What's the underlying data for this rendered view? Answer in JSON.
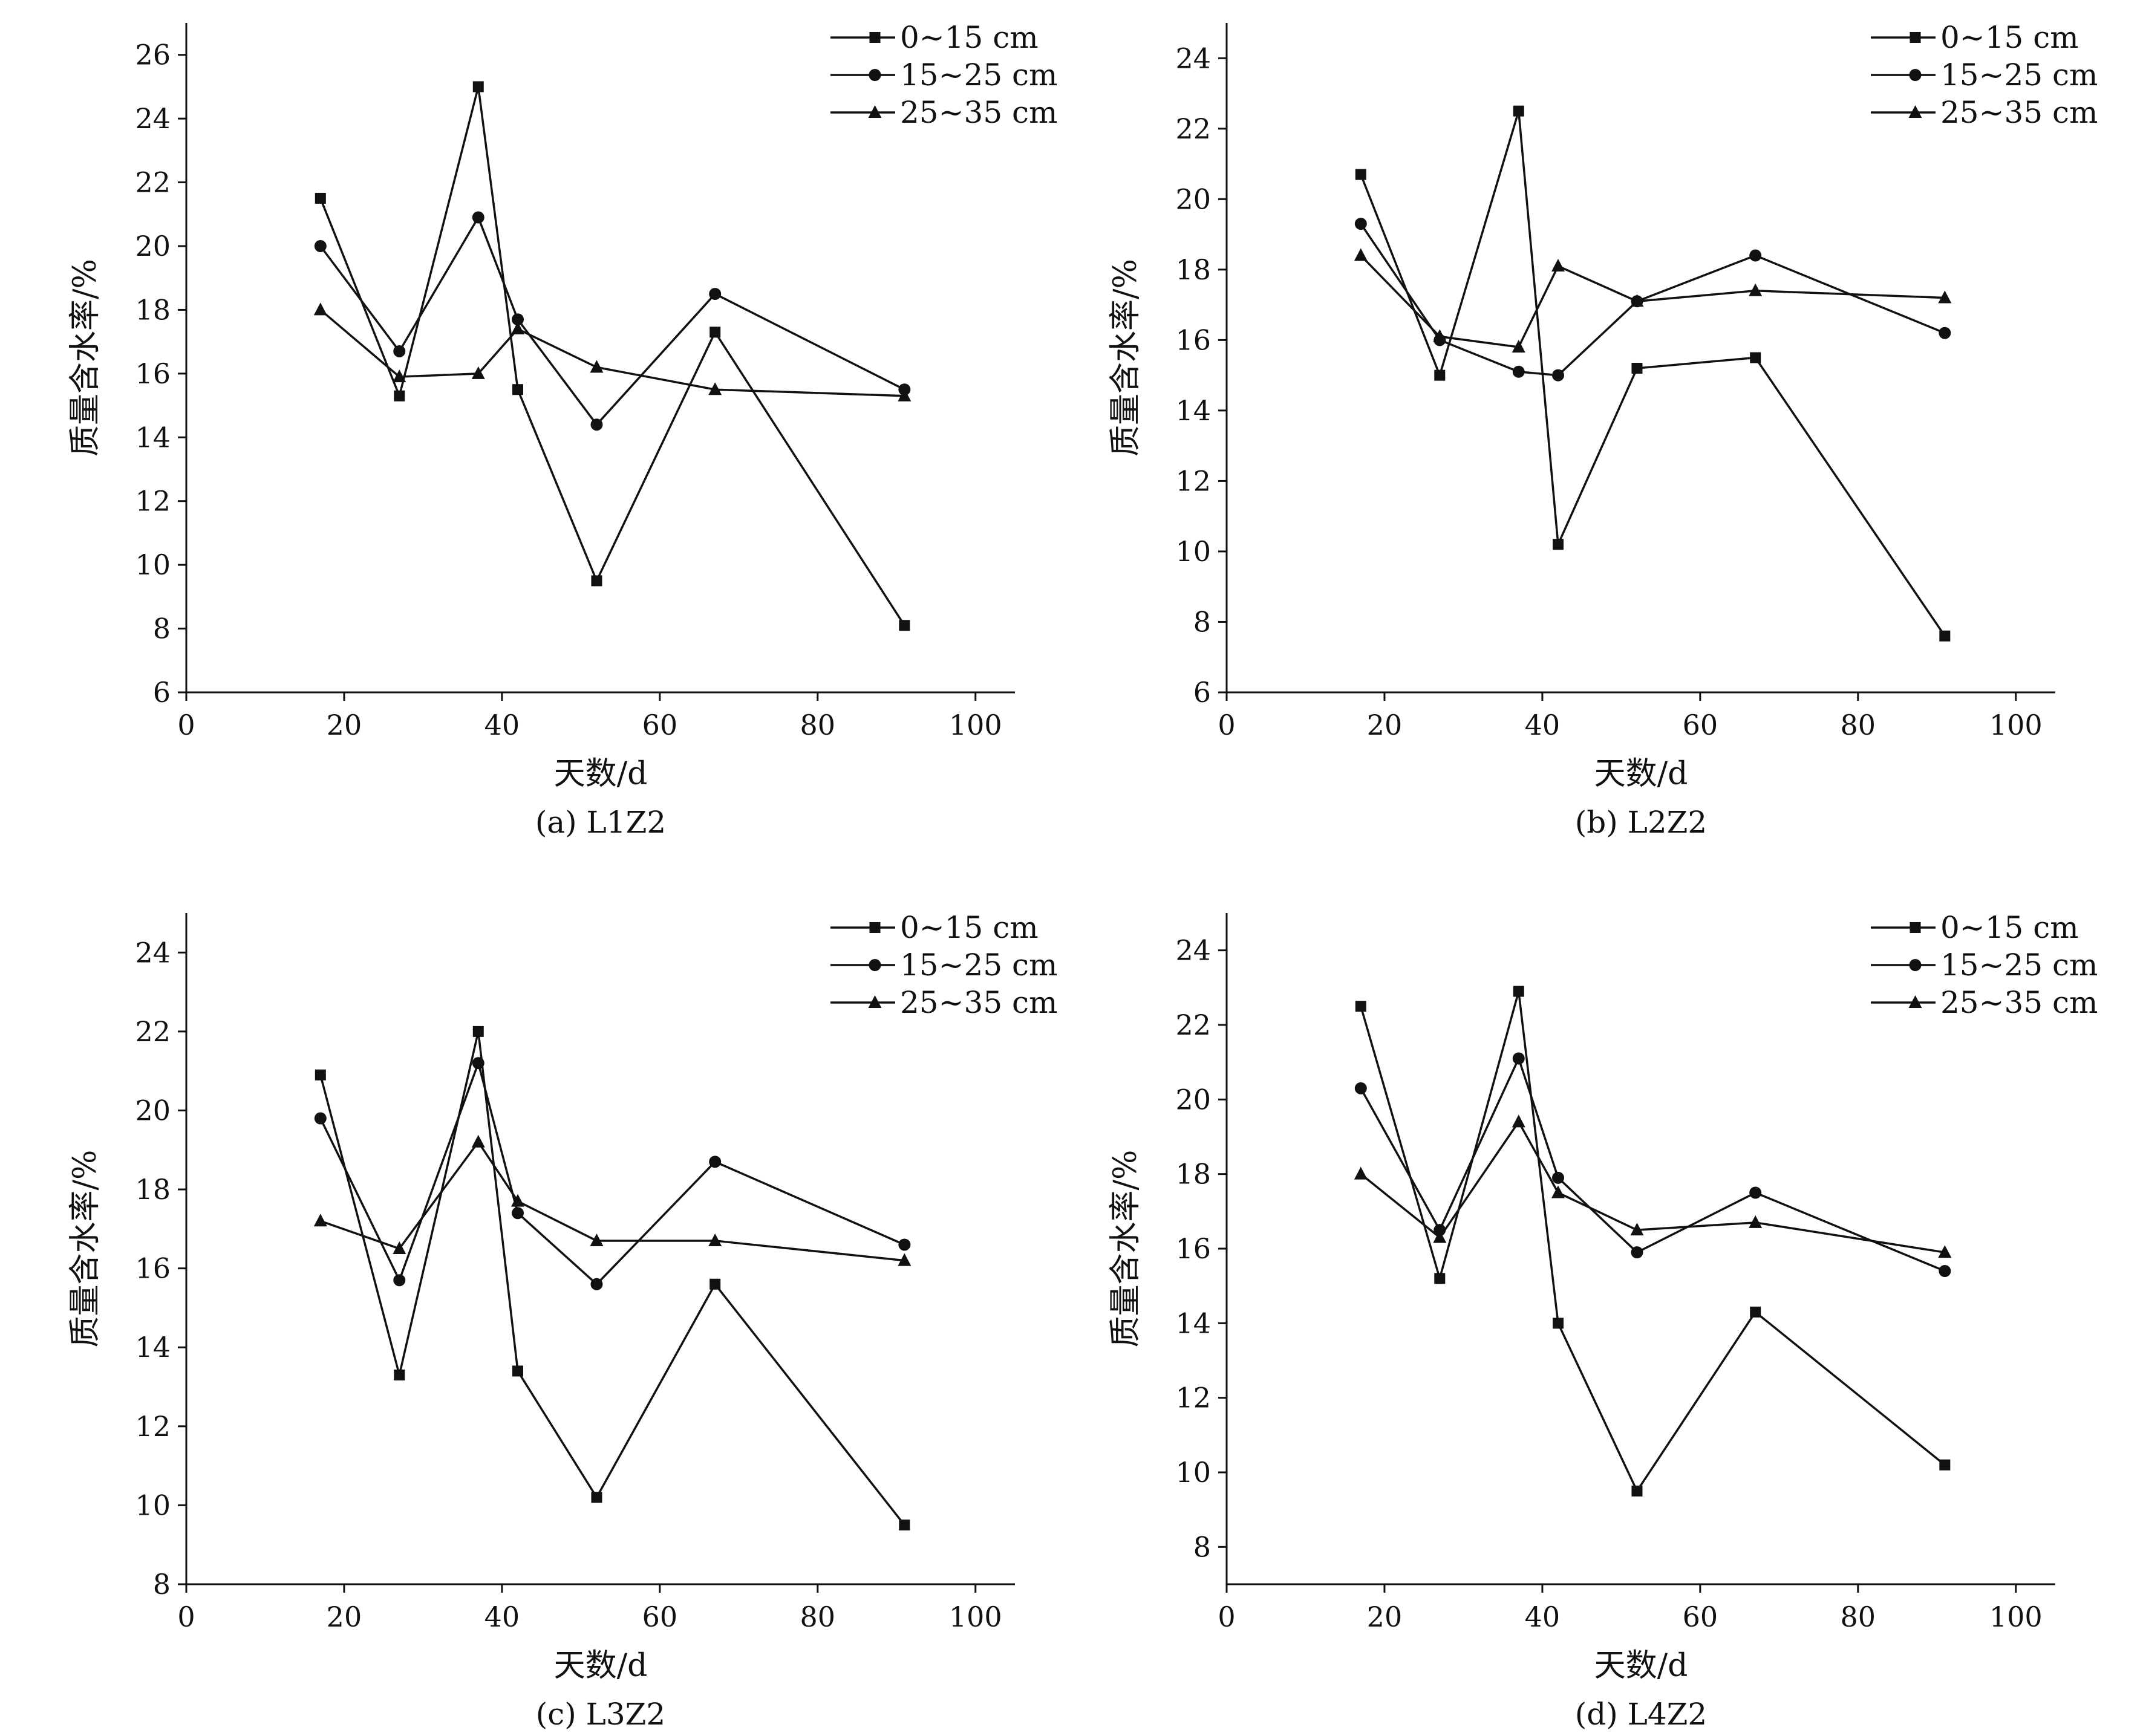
{
  "chart_data": [
    {
      "type": "line",
      "caption": "(a) L1Z2",
      "xlabel": "天数/d",
      "ylabel": "质量含水率/%",
      "xlim": [
        0,
        105
      ],
      "ylim": [
        6,
        27
      ],
      "xticks": [
        0,
        20,
        40,
        60,
        80,
        100
      ],
      "yticks": [
        6,
        8,
        10,
        12,
        14,
        16,
        18,
        20,
        22,
        24,
        26
      ],
      "x": [
        17,
        27,
        37,
        42,
        52,
        67,
        91
      ],
      "series": [
        {
          "name": "0~15 cm",
          "marker": "square",
          "values": [
            21.5,
            15.3,
            25.0,
            15.5,
            9.5,
            17.3,
            8.1
          ]
        },
        {
          "name": "15~25 cm",
          "marker": "circle",
          "values": [
            20.0,
            16.7,
            20.9,
            17.7,
            14.4,
            18.5,
            15.5
          ]
        },
        {
          "name": "25~35 cm",
          "marker": "triangle",
          "values": [
            18.0,
            15.9,
            16.0,
            17.4,
            16.2,
            15.5,
            15.3
          ]
        }
      ]
    },
    {
      "type": "line",
      "caption": "(b) L2Z2",
      "xlabel": "天数/d",
      "ylabel": "质量含水率/%",
      "xlim": [
        0,
        105
      ],
      "ylim": [
        6,
        25
      ],
      "xticks": [
        0,
        20,
        40,
        60,
        80,
        100
      ],
      "yticks": [
        6,
        8,
        10,
        12,
        14,
        16,
        18,
        20,
        22,
        24
      ],
      "x": [
        17,
        27,
        37,
        42,
        52,
        67,
        91
      ],
      "series": [
        {
          "name": "0~15 cm",
          "marker": "square",
          "values": [
            20.7,
            15.0,
            22.5,
            10.2,
            15.2,
            15.5,
            7.6
          ]
        },
        {
          "name": "15~25 cm",
          "marker": "circle",
          "values": [
            19.3,
            16.0,
            15.1,
            15.0,
            17.1,
            18.4,
            16.2
          ]
        },
        {
          "name": "25~35 cm",
          "marker": "triangle",
          "values": [
            18.4,
            16.1,
            15.8,
            18.1,
            17.1,
            17.4,
            17.2
          ]
        }
      ]
    },
    {
      "type": "line",
      "caption": "(c) L3Z2",
      "xlabel": "天数/d",
      "ylabel": "质量含水率/%",
      "xlim": [
        0,
        105
      ],
      "ylim": [
        8,
        25
      ],
      "xticks": [
        0,
        20,
        40,
        60,
        80,
        100
      ],
      "yticks": [
        8,
        10,
        12,
        14,
        16,
        18,
        20,
        22,
        24
      ],
      "x": [
        17,
        27,
        37,
        42,
        52,
        67,
        91
      ],
      "series": [
        {
          "name": "0~15 cm",
          "marker": "square",
          "values": [
            20.9,
            13.3,
            22.0,
            13.4,
            10.2,
            15.6,
            9.5
          ]
        },
        {
          "name": "15~25 cm",
          "marker": "circle",
          "values": [
            19.8,
            15.7,
            21.2,
            17.4,
            15.6,
            18.7,
            16.6
          ]
        },
        {
          "name": "25~35 cm",
          "marker": "triangle",
          "values": [
            17.2,
            16.5,
            19.2,
            17.7,
            16.7,
            16.7,
            16.2
          ]
        }
      ]
    },
    {
      "type": "line",
      "caption": "(d) L4Z2",
      "xlabel": "天数/d",
      "ylabel": "质量含水率/%",
      "xlim": [
        0,
        105
      ],
      "ylim": [
        7,
        25
      ],
      "xticks": [
        0,
        20,
        40,
        60,
        80,
        100
      ],
      "yticks": [
        8,
        10,
        12,
        14,
        16,
        18,
        20,
        22,
        24
      ],
      "x": [
        17,
        27,
        37,
        42,
        52,
        67,
        91
      ],
      "series": [
        {
          "name": "0~15 cm",
          "marker": "square",
          "values": [
            22.5,
            15.2,
            22.9,
            14.0,
            9.5,
            14.3,
            10.2
          ]
        },
        {
          "name": "15~25 cm",
          "marker": "circle",
          "values": [
            20.3,
            16.5,
            21.1,
            17.9,
            15.9,
            17.5,
            15.4
          ]
        },
        {
          "name": "25~35 cm",
          "marker": "triangle",
          "values": [
            18.0,
            16.3,
            19.4,
            17.5,
            16.5,
            16.7,
            15.9
          ]
        }
      ]
    }
  ]
}
